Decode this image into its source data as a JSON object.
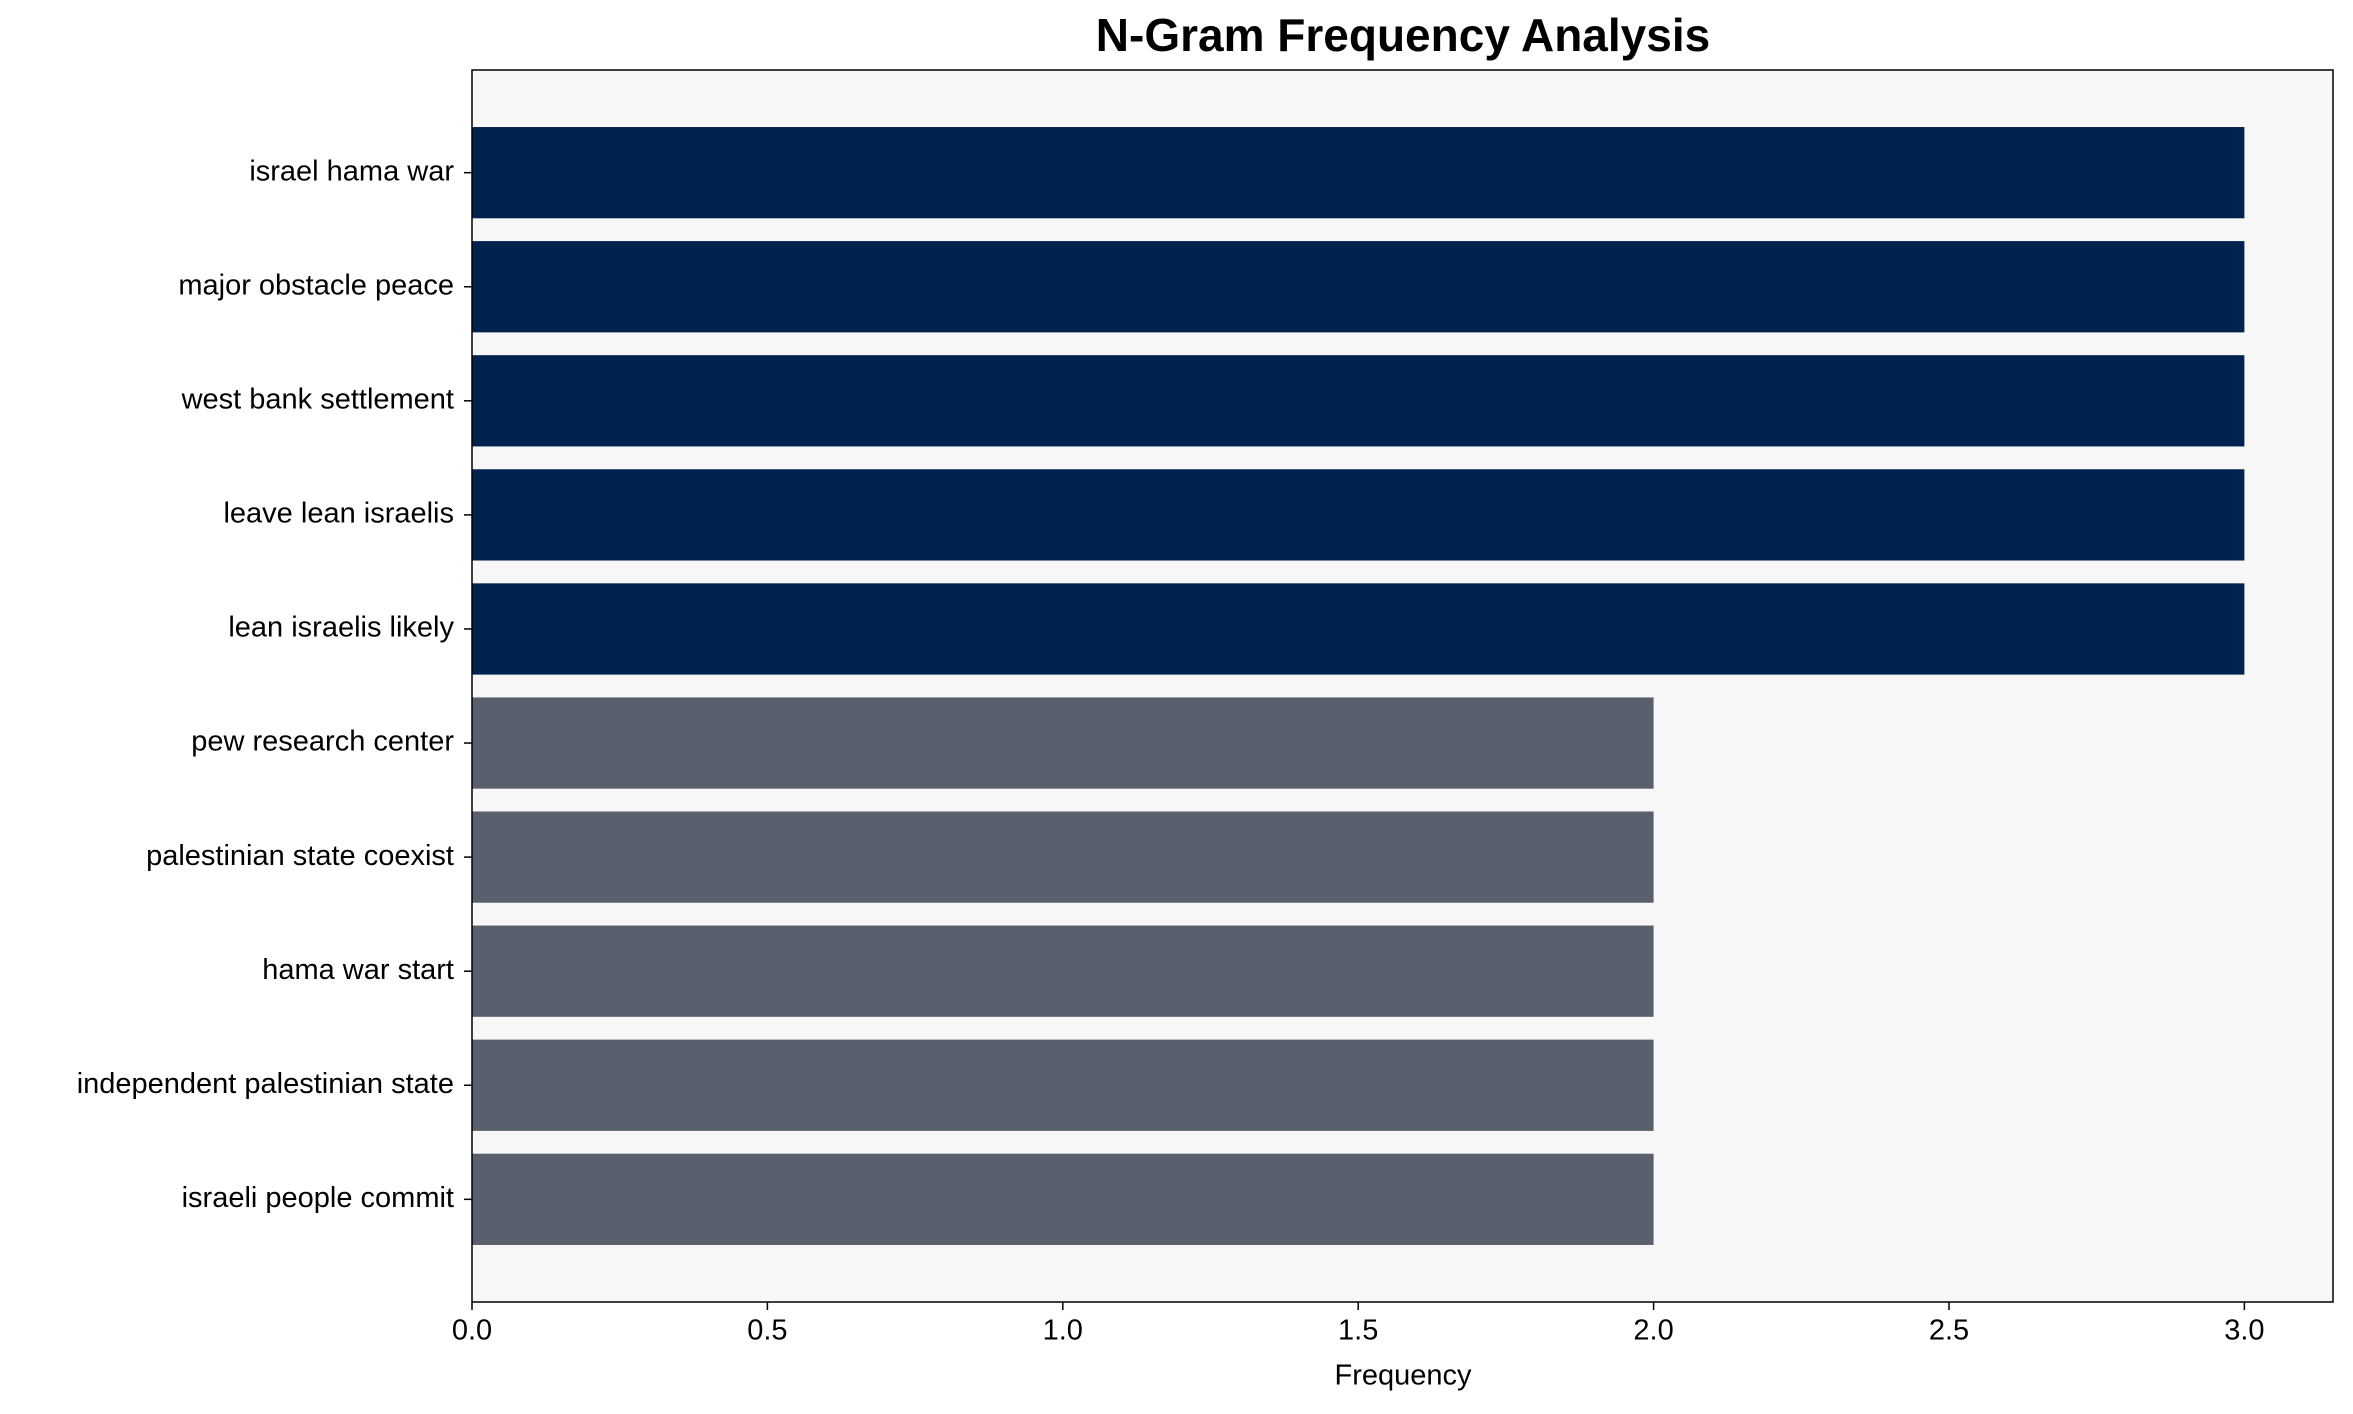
{
  "chart_data": {
    "type": "barh",
    "title": "N-Gram Frequency Analysis",
    "xlabel": "Frequency",
    "categories": [
      "israel hama war",
      "major obstacle peace",
      "west bank settlement",
      "leave lean israelis",
      "lean israelis likely",
      "pew research center",
      "palestinian state coexist",
      "hama war start",
      "independent palestinian state",
      "israeli people commit"
    ],
    "values": [
      3,
      3,
      3,
      3,
      3,
      2,
      2,
      2,
      2,
      2
    ],
    "colors": [
      "#00224e",
      "#00224e",
      "#00224e",
      "#00224e",
      "#00224e",
      "#5a5f6e",
      "#5a5f6e",
      "#5a5f6e",
      "#5a5f6e",
      "#5a5f6e"
    ],
    "xlim": [
      0,
      3.15
    ],
    "xticks": [
      {
        "value": 0,
        "label": "0.0"
      },
      {
        "value": 0.5,
        "label": "0.5"
      },
      {
        "value": 1,
        "label": "1.0"
      },
      {
        "value": 1.5,
        "label": "1.5"
      },
      {
        "value": 2,
        "label": "2.0"
      },
      {
        "value": 2.5,
        "label": "2.5"
      },
      {
        "value": 3,
        "label": "3.0"
      }
    ]
  }
}
